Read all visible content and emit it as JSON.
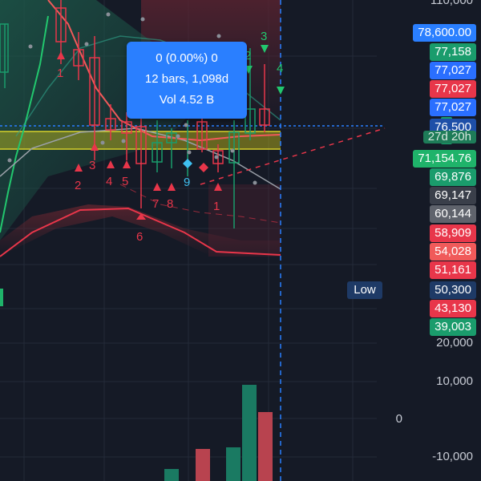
{
  "tooltip": {
    "change": "0 (0.00%) 0",
    "range": "12 bars, 1,098d",
    "volume": "Vol 4.52 B"
  },
  "price_scale": {
    "top_partial": "110,000",
    "labels": [
      {
        "text": "78,600.00",
        "bg": "#2a7fff"
      },
      {
        "text": "77,158",
        "bg": "#1a9c6c"
      },
      {
        "text": "77,027",
        "bg": "#2a6fff"
      },
      {
        "text": "77,027",
        "bg": "#e8364a"
      },
      {
        "text": "77,027",
        "bg": "#2a6fff"
      },
      {
        "text": "76,500",
        "bg": "#1e4fa8"
      },
      {
        "text": "27d 20h",
        "bg": "#1e7c58"
      },
      {
        "text": "71,154.76",
        "bg": "#1fb36a"
      },
      {
        "text": "69,876",
        "bg": "#1a9c6c"
      },
      {
        "text": "69,147",
        "bg": "#3a3f4a"
      },
      {
        "text": "60,144",
        "bg": "#5f636c"
      },
      {
        "text": "58,909",
        "bg": "#e8364a"
      },
      {
        "text": "54,028",
        "bg": "#f05a5a"
      },
      {
        "text": "51,161",
        "bg": "#e8364a"
      },
      {
        "text": "50,300",
        "bg": "#1e3a66"
      },
      {
        "text": "43,130",
        "bg": "#e8364a"
      },
      {
        "text": "39,003",
        "bg": "#1a9c6c"
      }
    ],
    "plain": [
      "20,000",
      "10,000",
      "0",
      "-10,000"
    ],
    "low_tag": "Low"
  },
  "markers": {
    "red_numbers": [
      "1",
      "2",
      "3",
      "4",
      "5",
      "6",
      "7",
      "8",
      "1"
    ],
    "green_numbers": [
      "3",
      "2",
      "4"
    ],
    "blue_number": "9"
  },
  "colors": {
    "background": "#151a26",
    "up": "#1a9c6c",
    "down": "#e8364a",
    "accent": "#2a7fff",
    "yellow_zone": "#c9c21a"
  }
}
